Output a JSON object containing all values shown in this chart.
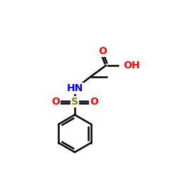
{
  "bg_color": "#ffffff",
  "atom_colors": {
    "C": "#000000",
    "O": "#ff0000",
    "N": "#0000ff",
    "S": "#808000"
  },
  "bond_color": "#000000",
  "bond_width": 1.8,
  "figsize": [
    2.5,
    2.5
  ],
  "dpi": 100,
  "xlim": [
    0,
    10
  ],
  "ylim": [
    0,
    10
  ]
}
